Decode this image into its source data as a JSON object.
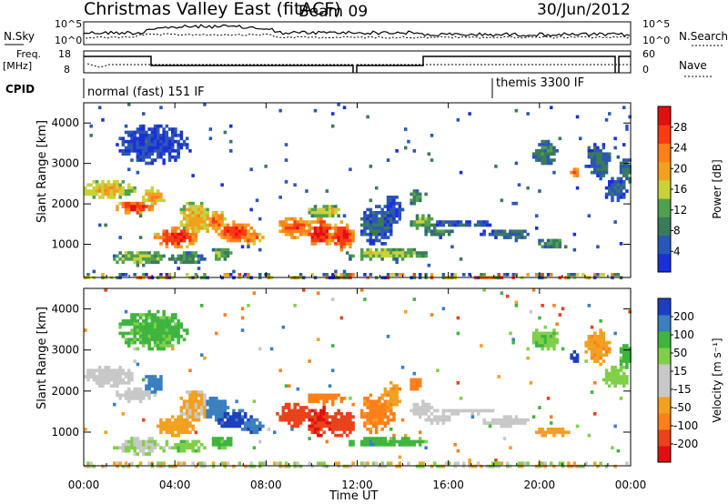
{
  "header": {
    "title": "Christmas Valley East (fitACF)",
    "beam": "Beam 09",
    "date": "30/Jun/2012"
  },
  "status_panels": {
    "nsky_label": "N.Sky",
    "nsearch_label": "N.Search",
    "nsky_ticks": [
      "10^5",
      "10^0"
    ],
    "nsearch_ticks": [
      "10^5",
      "10^0"
    ],
    "freq_label": "Freq.",
    "freq_unit": "[MHz]",
    "freq_ticks": [
      "18",
      "8"
    ],
    "nave_label": "Nave",
    "nave_ticks": [
      "60",
      "0"
    ],
    "cpid_label": "CPID",
    "cpid_segments": [
      "normal (fast) 151 IF",
      "themis 3300 IF"
    ]
  },
  "colors": {
    "power": [
      "#1b2fd8",
      "#2b57b4",
      "#3b7a5a",
      "#4fa050",
      "#c9d23a",
      "#f2a020",
      "#ff7f1a",
      "#ff3a12",
      "#e01010"
    ],
    "velocity": [
      "#1d3fbf",
      "#3a7fbf",
      "#3fb53f",
      "#7fcf4a",
      "#c8c8c8",
      "#c8c8c8",
      "#f2a020",
      "#ff7f1a",
      "#e8431b",
      "#e01010"
    ]
  },
  "chart_data": [
    {
      "type": "heatmap",
      "title": "Power",
      "xlabel": "Time UT",
      "ylabel": "Slant Range [km]",
      "x_ticks": [
        "00:00",
        "04:00",
        "08:00",
        "12:00",
        "16:00",
        "20:00",
        "00:00"
      ],
      "y_ticks": [
        "1000",
        "2000",
        "3000",
        "4000"
      ],
      "xlim_hours": [
        0,
        24
      ],
      "ylim_km": [
        180,
        4500
      ],
      "colorbar": {
        "label": "Power [dB]",
        "ticks": [
          "4",
          "8",
          "12",
          "16",
          "20",
          "24",
          "28"
        ],
        "range": [
          0,
          30
        ]
      }
    },
    {
      "type": "heatmap",
      "title": "Velocity",
      "xlabel": "Time UT",
      "ylabel": "Slant Range [km]",
      "x_ticks": [
        "00:00",
        "04:00",
        "08:00",
        "12:00",
        "16:00",
        "20:00",
        "00:00"
      ],
      "y_ticks": [
        "1000",
        "2000",
        "3000",
        "4000"
      ],
      "xlim_hours": [
        0,
        24
      ],
      "ylim_km": [
        180,
        4500
      ],
      "colorbar": {
        "label": "Velocity [m s⁻¹]",
        "ticks": [
          "200",
          "100",
          "50",
          "15",
          "-15",
          "-50",
          "-100",
          "-200"
        ],
        "range": [
          -250,
          250
        ]
      }
    }
  ]
}
